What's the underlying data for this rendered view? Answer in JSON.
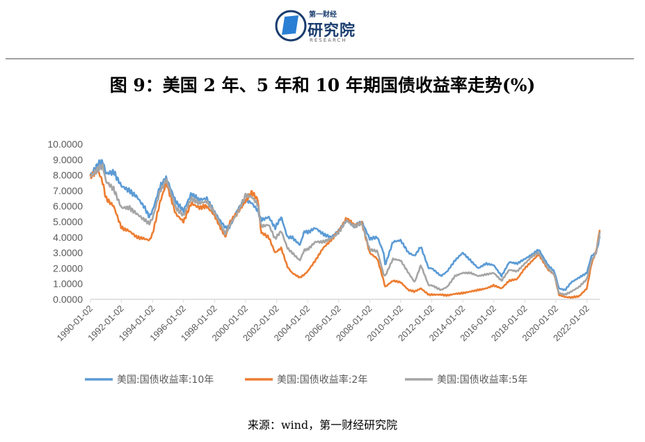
{
  "logo": {
    "small_text": "第一财经",
    "main_text": "研究院",
    "sub_text": "RESEARCH"
  },
  "figure_title": "图 9：美国 2 年、5 年和 10 年期国债收益率走势(%)",
  "source_note": "来源：wind，第一财经研究院",
  "colors": {
    "y10": "#5B9BD5",
    "y2": "#ED7D31",
    "y5": "#A5A5A5",
    "axis": "#D9D9D9",
    "tick_text": "#595959"
  },
  "chart_data": {
    "type": "line",
    "xlabel": "",
    "ylabel": "",
    "ylim": [
      0,
      10
    ],
    "y_ticks": [
      "0.0000",
      "1.0000",
      "2.0000",
      "3.0000",
      "4.0000",
      "5.0000",
      "6.0000",
      "7.0000",
      "8.0000",
      "9.0000",
      "10.0000"
    ],
    "x_ticks": [
      "1990-01-02",
      "1992-01-02",
      "1994-01-02",
      "1996-01-02",
      "1998-01-02",
      "2000-01-02",
      "2002-01-02",
      "2004-01-02",
      "2006-01-02",
      "2008-01-02",
      "2010-01-02",
      "2012-01-02",
      "2014-01-02",
      "2016-01-02",
      "2018-01-02",
      "2020-01-02",
      "2022-01-02"
    ],
    "x_range": [
      "1990-01-02",
      "2022-10-31"
    ],
    "legend_position": "bottom",
    "grid": false,
    "x": [
      1990.0,
      1990.5,
      1990.8,
      1991.0,
      1991.5,
      1992.0,
      1992.5,
      1993.0,
      1993.5,
      1993.8,
      1994.0,
      1994.5,
      1994.9,
      1995.5,
      1996.0,
      1996.5,
      1997.0,
      1997.5,
      1998.0,
      1998.7,
      1999.0,
      1999.5,
      2000.0,
      2000.4,
      2000.8,
      2001.0,
      2001.5,
      2001.9,
      2002.3,
      2002.7,
      2003.0,
      2003.5,
      2003.8,
      2004.0,
      2004.5,
      2005.0,
      2005.5,
      2006.0,
      2006.5,
      2007.0,
      2007.5,
      2008.0,
      2008.5,
      2008.9,
      2009.0,
      2009.5,
      2010.0,
      2010.5,
      2010.9,
      2011.3,
      2011.8,
      2012.0,
      2012.6,
      2013.0,
      2013.5,
      2014.0,
      2014.5,
      2015.0,
      2015.5,
      2016.0,
      2016.5,
      2017.0,
      2017.5,
      2018.0,
      2018.5,
      2018.9,
      2019.5,
      2019.9,
      2020.2,
      2020.6,
      2021.0,
      2021.5,
      2022.0,
      2022.3,
      2022.6,
      2022.83
    ],
    "series": [
      {
        "name": "美国:国债收益率:10年",
        "values": [
          8.0,
          8.7,
          8.9,
          8.1,
          8.2,
          7.3,
          7.0,
          6.6,
          5.9,
          5.3,
          5.7,
          7.3,
          7.8,
          6.3,
          5.7,
          6.8,
          6.4,
          6.5,
          5.6,
          4.6,
          4.7,
          5.8,
          6.4,
          6.2,
          5.7,
          5.1,
          5.3,
          4.6,
          5.3,
          4.0,
          4.0,
          3.5,
          4.4,
          4.3,
          4.6,
          4.2,
          4.0,
          4.4,
          5.1,
          4.7,
          5.0,
          3.9,
          4.0,
          3.0,
          2.2,
          3.7,
          3.8,
          3.0,
          2.8,
          3.4,
          2.0,
          2.0,
          1.5,
          1.8,
          2.5,
          3.0,
          2.5,
          2.0,
          2.3,
          2.2,
          1.5,
          2.4,
          2.3,
          2.6,
          2.9,
          3.2,
          2.2,
          1.8,
          0.7,
          0.6,
          1.1,
          1.4,
          1.7,
          2.8,
          3.0,
          4.0
        ]
      },
      {
        "name": "美国:国债收益率:2年",
        "values": [
          7.9,
          8.3,
          7.5,
          6.5,
          6.0,
          4.6,
          4.4,
          4.0,
          3.9,
          3.8,
          4.2,
          6.3,
          7.5,
          5.5,
          5.0,
          6.2,
          5.9,
          6.0,
          5.4,
          4.0,
          5.0,
          5.6,
          6.3,
          6.9,
          6.4,
          4.3,
          4.0,
          3.0,
          3.3,
          2.1,
          1.7,
          1.4,
          1.6,
          1.8,
          2.5,
          3.3,
          3.8,
          4.4,
          5.2,
          4.8,
          4.9,
          3.0,
          2.6,
          1.2,
          0.8,
          1.2,
          1.1,
          0.6,
          0.5,
          0.7,
          0.3,
          0.3,
          0.3,
          0.25,
          0.35,
          0.4,
          0.5,
          0.6,
          0.7,
          0.9,
          0.7,
          1.2,
          1.3,
          2.0,
          2.5,
          2.9,
          1.9,
          1.6,
          0.3,
          0.15,
          0.12,
          0.2,
          0.7,
          2.3,
          3.1,
          4.5
        ]
      },
      {
        "name": "美国:国债收益率:5年",
        "values": [
          7.9,
          8.4,
          8.6,
          7.6,
          7.1,
          5.9,
          5.9,
          5.5,
          5.1,
          4.9,
          5.2,
          7.0,
          7.7,
          5.9,
          5.4,
          6.5,
          6.2,
          6.3,
          5.6,
          4.2,
          4.8,
          5.6,
          6.7,
          6.6,
          6.1,
          4.7,
          4.8,
          3.9,
          4.4,
          3.3,
          3.0,
          2.5,
          3.2,
          3.2,
          3.7,
          3.7,
          3.9,
          4.3,
          5.1,
          4.7,
          4.9,
          3.2,
          3.1,
          1.6,
          1.5,
          2.6,
          2.5,
          1.7,
          1.1,
          2.2,
          0.9,
          0.9,
          0.6,
          0.8,
          1.5,
          1.7,
          1.7,
          1.5,
          1.6,
          1.7,
          1.2,
          1.9,
          1.8,
          2.3,
          2.8,
          3.0,
          2.0,
          1.6,
          0.4,
          0.3,
          0.5,
          0.8,
          1.3,
          2.5,
          3.0,
          4.3
        ]
      }
    ]
  }
}
